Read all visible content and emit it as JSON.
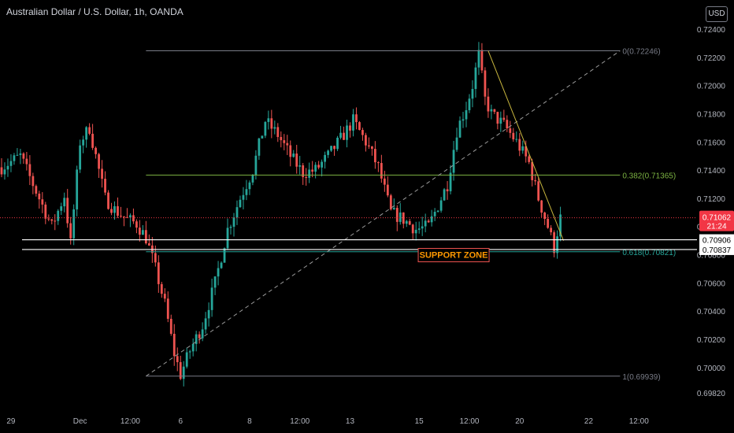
{
  "title": "Australian Dollar / U.S. Dollar, 1h, OANDA",
  "currency_button": "USD",
  "colors": {
    "background": "#000000",
    "up": "#26a69a",
    "down": "#ef5350",
    "wick": "#b8b8b8",
    "fib_top": "#787b86",
    "fib_382": "#7cb342",
    "fib_618": "#26a69a",
    "trendline": "#c8b63e",
    "support_text": "#ff9800",
    "price_tag": "#f23645"
  },
  "chart_data": {
    "type": "candlestick",
    "ylim": [
      0.6972,
      0.7245
    ],
    "y_ticks": [
      "0.72400",
      "0.72200",
      "0.72000",
      "0.71800",
      "0.71600",
      "0.71400",
      "0.71200",
      "0.71000",
      "0.70800",
      "0.70600",
      "0.70400",
      "0.70200",
      "0.70000",
      "0.69820"
    ],
    "y_tick_values": [
      0.724,
      0.722,
      0.72,
      0.718,
      0.716,
      0.714,
      0.712,
      0.71,
      0.708,
      0.706,
      0.704,
      0.702,
      0.7,
      0.6982
    ],
    "x_ticks": [
      {
        "label": "29",
        "i": 3
      },
      {
        "label": "Dec",
        "i": 25
      },
      {
        "label": "12:00",
        "i": 41
      },
      {
        "label": "6",
        "i": 57
      },
      {
        "label": "8",
        "i": 79
      },
      {
        "label": "12:00",
        "i": 95
      },
      {
        "label": "13",
        "i": 111
      },
      {
        "label": "15",
        "i": 133
      },
      {
        "label": "12:00",
        "i": 149
      },
      {
        "label": "20",
        "i": 165
      },
      {
        "label": "22",
        "i": 187
      },
      {
        "label": "12:00",
        "i": 203
      }
    ],
    "x_count": 222,
    "anchors": [
      [
        0,
        0.7142
      ],
      [
        6,
        0.715
      ],
      [
        10,
        0.713
      ],
      [
        16,
        0.71
      ],
      [
        20,
        0.7122
      ],
      [
        22,
        0.7088
      ],
      [
        25,
        0.716
      ],
      [
        28,
        0.717
      ],
      [
        30,
        0.715
      ],
      [
        33,
        0.712
      ],
      [
        36,
        0.7112
      ],
      [
        40,
        0.7105
      ],
      [
        43,
        0.7102
      ],
      [
        46,
        0.7092
      ],
      [
        49,
        0.707
      ],
      [
        52,
        0.7045
      ],
      [
        55,
        0.701
      ],
      [
        57,
        0.6995
      ],
      [
        60,
        0.7012
      ],
      [
        64,
        0.703
      ],
      [
        68,
        0.706
      ],
      [
        72,
        0.7098
      ],
      [
        76,
        0.712
      ],
      [
        80,
        0.714
      ],
      [
        84,
        0.7175
      ],
      [
        88,
        0.7165
      ],
      [
        92,
        0.715
      ],
      [
        96,
        0.7138
      ],
      [
        100,
        0.714
      ],
      [
        104,
        0.715
      ],
      [
        108,
        0.7162
      ],
      [
        112,
        0.7175
      ],
      [
        116,
        0.716
      ],
      [
        120,
        0.7142
      ],
      [
        124,
        0.711
      ],
      [
        128,
        0.7105
      ],
      [
        132,
        0.7098
      ],
      [
        136,
        0.71
      ],
      [
        139,
        0.7115
      ],
      [
        142,
        0.713
      ],
      [
        145,
        0.7168
      ],
      [
        148,
        0.7185
      ],
      [
        150,
        0.72
      ],
      [
        152,
        0.7222
      ],
      [
        154,
        0.719
      ],
      [
        156,
        0.718
      ],
      [
        160,
        0.7172
      ],
      [
        164,
        0.716
      ],
      [
        168,
        0.7145
      ],
      [
        171,
        0.712
      ],
      [
        174,
        0.71
      ],
      [
        176,
        0.7085
      ],
      [
        177,
        0.7096
      ],
      [
        178,
        0.7106
      ]
    ],
    "fib_levels": [
      {
        "label": "0(0.72246)",
        "value": 0.72246
      },
      {
        "label": "0.382(0.71365)",
        "value": 0.71365
      },
      {
        "label": "0.618(0.70821)",
        "value": 0.70821
      },
      {
        "label": "1(0.69939)",
        "value": 0.69939
      }
    ],
    "fib_range": [
      46,
      197
    ],
    "diagonal": {
      "from": [
        46,
        0.69939
      ],
      "to": [
        197,
        0.72246
      ]
    },
    "trendline": {
      "from": [
        155,
        0.72246
      ],
      "to": [
        179,
        0.709
      ]
    },
    "support_lines": [
      0.70906,
      0.70837
    ],
    "support_label": "SUPPORT ZONE",
    "support_label_at": [
      144,
      0.708
    ],
    "current_price": {
      "value": 0.71062,
      "label": "0.71062",
      "countdown": "21:24"
    },
    "support_tags": [
      {
        "label": "0.70906",
        "value": 0.70906
      },
      {
        "label": "0.70837",
        "value": 0.70837
      }
    ]
  }
}
